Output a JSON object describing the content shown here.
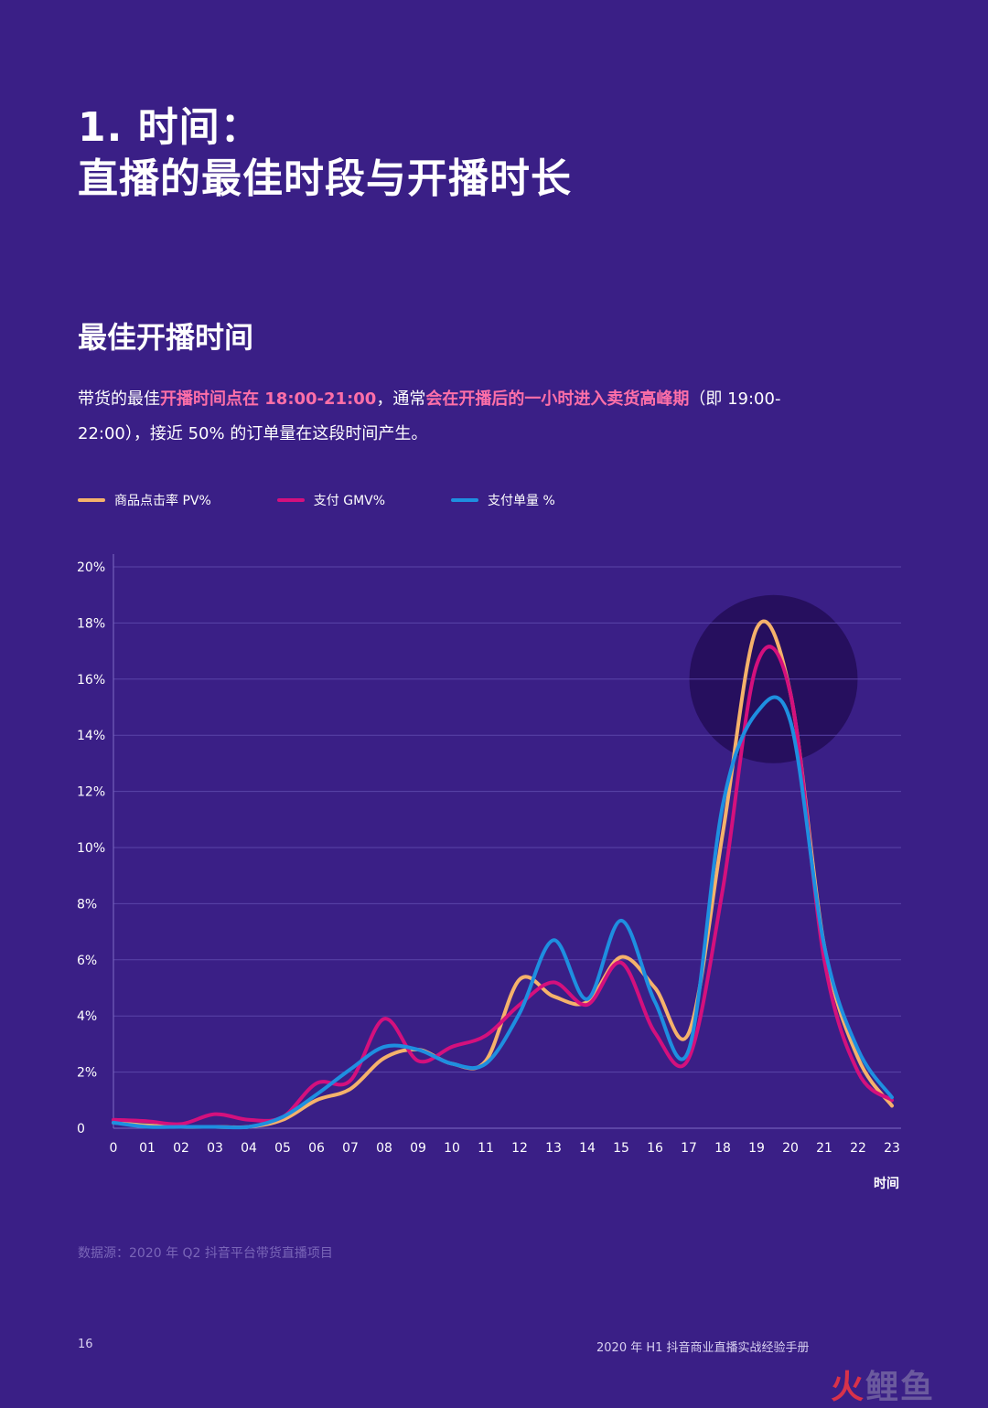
{
  "header": {
    "title_line1": "1. 时间：",
    "title_line2": "直播的最佳时段与开播时长"
  },
  "section": {
    "title": "最佳开播时间",
    "desc_1": "带货的最佳",
    "desc_2": "开播时间点在 18:00-21:00",
    "desc_3": "，通常",
    "desc_4": "会在开播后的一小时进入卖货高峰期",
    "desc_5": "（即 19:00-22:00），接近 50% 的订单量在这段时间产生。"
  },
  "colors": {
    "pv": "#f5b26b",
    "gmv": "#d4107d",
    "orders": "#1e8fe0",
    "highlight": "#ff6fa8",
    "background": "#3a1f86",
    "peak_circle": "#260f5e"
  },
  "chart_data": {
    "type": "line",
    "x": [
      "0",
      "01",
      "02",
      "03",
      "04",
      "05",
      "06",
      "07",
      "08",
      "09",
      "10",
      "11",
      "12",
      "13",
      "14",
      "15",
      "16",
      "17",
      "18",
      "19",
      "20",
      "21",
      "22",
      "23"
    ],
    "xlabel": "时间",
    "ylabel": "",
    "ylim": [
      0,
      20
    ],
    "yticks": [
      "0",
      "2%",
      "4%",
      "6%",
      "8%",
      "10%",
      "12%",
      "14%",
      "16%",
      "18%",
      "20%"
    ],
    "grid": true,
    "legend_position": "top-left",
    "highlight_region": {
      "x_center": 19.5,
      "y_center": 16
    },
    "series": [
      {
        "name": "商品点击率 PV%",
        "color": "#f5b26b",
        "values": [
          0.2,
          0.1,
          0.05,
          0.05,
          0.05,
          0.3,
          1.0,
          1.4,
          2.5,
          2.8,
          2.3,
          2.4,
          5.3,
          4.7,
          4.5,
          6.1,
          5.0,
          3.4,
          10.5,
          17.8,
          15.5,
          6.5,
          2.5,
          0.8
        ]
      },
      {
        "name": "支付 GMV%",
        "color": "#d4107d",
        "values": [
          0.3,
          0.25,
          0.15,
          0.5,
          0.3,
          0.4,
          1.6,
          1.7,
          3.9,
          2.4,
          2.9,
          3.3,
          4.4,
          5.2,
          4.4,
          5.9,
          3.4,
          2.5,
          8.5,
          16.5,
          15.5,
          6.0,
          2.0,
          1.0
        ]
      },
      {
        "name": "支付单量 %",
        "color": "#1e8fe0",
        "values": [
          0.2,
          0.05,
          0.05,
          0.05,
          0.05,
          0.4,
          1.2,
          2.1,
          2.9,
          2.8,
          2.3,
          2.3,
          4.1,
          6.7,
          4.6,
          7.4,
          4.5,
          2.8,
          11.5,
          14.8,
          14.5,
          6.5,
          2.8,
          1.1
        ]
      }
    ]
  },
  "footer": {
    "source": "数据源：2020 年 Q2 抖音平台带货直播项目",
    "page_number": "16",
    "doc_title": "2020 年 H1 抖音商业直播实战经验手册",
    "watermark_a": "火",
    "watermark_b": "鲤鱼"
  }
}
